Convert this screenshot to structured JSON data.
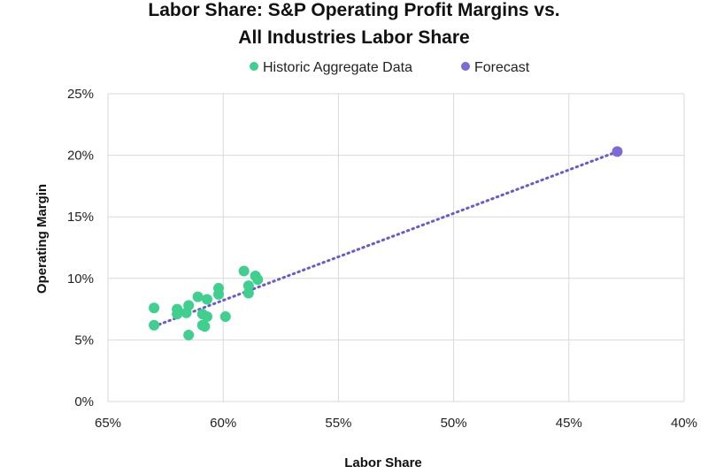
{
  "chart_data": {
    "type": "scatter",
    "title": "Labor Share: S&P Operating Profit Margins vs.",
    "subtitle": "All Industries Labor Share",
    "xlabel": "Labor Share",
    "ylabel": "Operating Margin",
    "x_reversed": true,
    "xlim": [
      0.65,
      0.4
    ],
    "ylim": [
      0,
      0.25
    ],
    "x_ticks": [
      0.65,
      0.6,
      0.55,
      0.5,
      0.45,
      0.4
    ],
    "x_tick_labels": [
      "65%",
      "60%",
      "55%",
      "50%",
      "45%",
      "40%"
    ],
    "y_ticks": [
      0,
      0.05,
      0.1,
      0.15,
      0.2,
      0.25
    ],
    "y_tick_labels": [
      "0%",
      "5%",
      "10%",
      "15%",
      "20%",
      "25%"
    ],
    "grid": true,
    "legend_position": "top-center",
    "series": [
      {
        "name": "Historic Aggregate Data",
        "color": "#3fcf8e",
        "points": [
          [
            0.63,
            0.076
          ],
          [
            0.63,
            0.062
          ],
          [
            0.62,
            0.075
          ],
          [
            0.62,
            0.071
          ],
          [
            0.616,
            0.072
          ],
          [
            0.615,
            0.054
          ],
          [
            0.615,
            0.078
          ],
          [
            0.611,
            0.085
          ],
          [
            0.609,
            0.071
          ],
          [
            0.609,
            0.062
          ],
          [
            0.608,
            0.061
          ],
          [
            0.607,
            0.083
          ],
          [
            0.607,
            0.069
          ],
          [
            0.602,
            0.087
          ],
          [
            0.602,
            0.092
          ],
          [
            0.599,
            0.069
          ],
          [
            0.591,
            0.106
          ],
          [
            0.589,
            0.088
          ],
          [
            0.589,
            0.094
          ],
          [
            0.586,
            0.102
          ],
          [
            0.585,
            0.099
          ]
        ]
      },
      {
        "name": "Forecast",
        "color": "#7d6ad8",
        "points": [
          [
            0.429,
            0.203
          ]
        ]
      }
    ],
    "trendline": {
      "style": "dotted",
      "color": "#6a5acd",
      "from": [
        0.63,
        0.061
      ],
      "to": [
        0.429,
        0.203
      ]
    }
  }
}
